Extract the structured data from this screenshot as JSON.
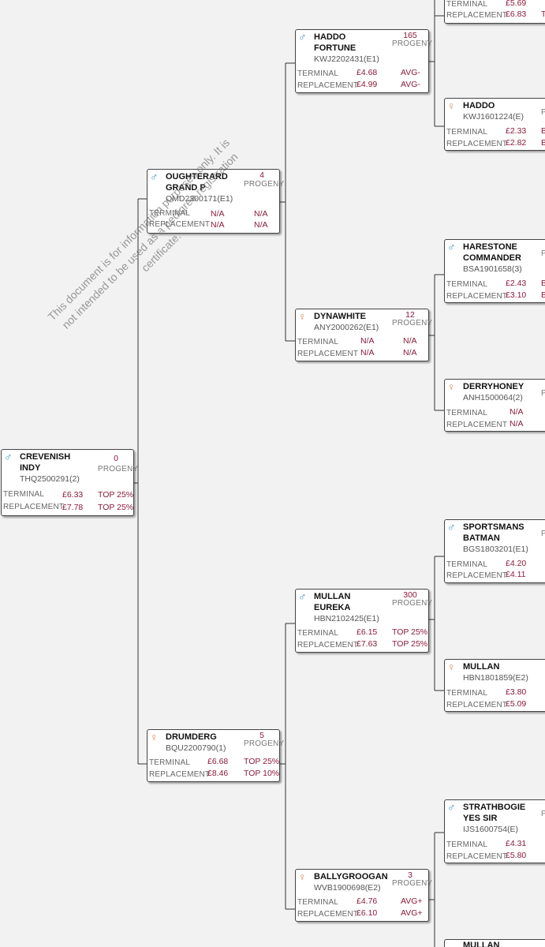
{
  "labels": {
    "progeny": "PROGENY",
    "terminal": "TERMINAL",
    "replacement": "REPLACEMENT",
    "male_symbol": "♂",
    "female_symbol": "♀",
    "edge_p": "P"
  },
  "watermark": "This document is for information purposes only. It is not intended to be used as a pedigree registration certificate.",
  "animals": {
    "crevenish": {
      "name": "CREVENISH INDY",
      "herd": "THQ2500291(2)",
      "progeny": "0",
      "terminal": "£6.33",
      "terminal_rank": "TOP 25%",
      "replacement": "£7.78",
      "replacement_rank": "TOP 25%"
    },
    "oughterard": {
      "name": "OUGHTERARD GRAND P",
      "herd": "OMD2300171(E1)",
      "progeny": "4",
      "terminal": "N/A",
      "terminal_rank": "N/A",
      "replacement": "N/A",
      "replacement_rank": "N/A"
    },
    "drumderg": {
      "name": "DRUMDERG",
      "herd": "BQU2200790(1)",
      "progeny": "5",
      "terminal": "£6.68",
      "terminal_rank": "TOP 25%",
      "replacement": "£8.46",
      "replacement_rank": "TOP 10%"
    },
    "haddo_fortune": {
      "name": "HADDO FORTUNE",
      "herd": "KWJ2202431(E1)",
      "progeny": "165",
      "terminal": "£4.68",
      "terminal_rank": "AVG-",
      "replacement": "£4.99",
      "replacement_rank": "AVG-"
    },
    "dynawhite": {
      "name": "DYNAWHITE",
      "herd": "ANY2000262(E1)",
      "progeny": "12",
      "terminal": "N/A",
      "terminal_rank": "N/A",
      "replacement": "N/A",
      "replacement_rank": "N/A"
    },
    "mullan_eureka": {
      "name": "MULLAN EUREKA",
      "herd": "HBN2102425(E1)",
      "progeny": "300",
      "terminal": "£6.15",
      "terminal_rank": "TOP 25%",
      "replacement": "£7.63",
      "replacement_rank": "TOP 25%"
    },
    "ballygroogan": {
      "name": "BALLYGROOGAN",
      "herd": "WVB1900698(E2)",
      "progeny": "3",
      "terminal": "£4.76",
      "terminal_rank": "AVG+",
      "replacement": "£6.10",
      "replacement_rank": "AVG+"
    },
    "top_partial": {
      "terminal": "£5.69",
      "replacement": "£6.83",
      "replacement_rank": "T"
    },
    "haddo": {
      "name": "HADDO",
      "herd": "KWJ1601224(E)",
      "terminal": "£2.33",
      "terminal_rank": "B",
      "replacement": "£2.82",
      "replacement_rank": "B"
    },
    "harestone": {
      "name": "HARESTONE COMMANDER",
      "herd": "BSA1901658(3)",
      "terminal": "£2.43",
      "terminal_rank": "B",
      "replacement": "£3.10",
      "replacement_rank": "B"
    },
    "derryhoney": {
      "name": "DERRYHONEY",
      "herd": "ANH1500064(2)",
      "terminal": "N/A",
      "replacement": "N/A"
    },
    "sportsmans": {
      "name": "SPORTSMANS BATMAN",
      "herd": "BGS1803201(E1)",
      "terminal": "£4.20",
      "replacement": "£4.11"
    },
    "mullan": {
      "name": "MULLAN",
      "herd": "HBN1801859(E2)",
      "terminal": "£3.80",
      "replacement": "£5.09"
    },
    "strathbogie": {
      "name": "STRATHBOGIE YES SIR",
      "herd": "IJS1600754(E)",
      "terminal": "£4.31",
      "replacement": "£5.80"
    },
    "mullan_bottom": {
      "name": "MULLAN"
    }
  }
}
